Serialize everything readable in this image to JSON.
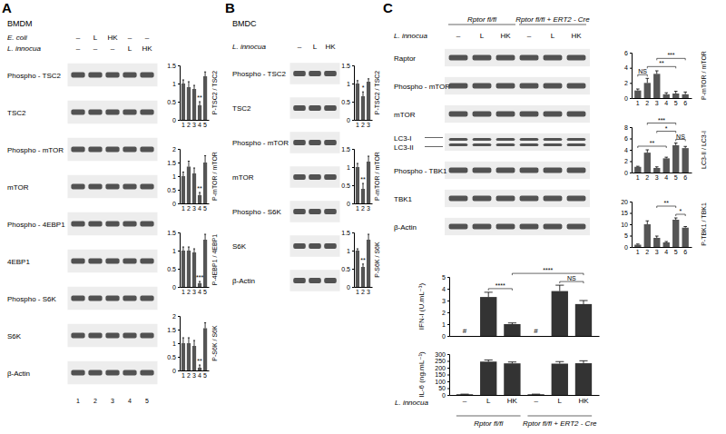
{
  "chart_data": [
    {
      "type": "bar",
      "y_label": "P-TSC2 / TSC2",
      "categories": [
        "1",
        "2",
        "3",
        "4",
        "5"
      ],
      "values": [
        1.0,
        0.9,
        0.85,
        0.4,
        1.2
      ],
      "errors": [
        0.1,
        0.15,
        0.1,
        0.1,
        0.12
      ],
      "ylim": [
        0,
        1.5
      ],
      "yticks": [
        0,
        0.5,
        1,
        1.5
      ],
      "color": "#555555",
      "annotations": [
        {
          "text": "**",
          "from": 3,
          "to": 3
        }
      ]
    },
    {
      "type": "bar",
      "y_label": "P-mTOR / mTOR",
      "categories": [
        "1",
        "2",
        "3",
        "4",
        "5"
      ],
      "values": [
        1.0,
        1.35,
        1.1,
        0.3,
        1.5
      ],
      "errors": [
        0.15,
        0.2,
        0.2,
        0.1,
        0.25
      ],
      "ylim": [
        0,
        2
      ],
      "yticks": [
        0,
        0.5,
        1,
        1.5,
        2
      ],
      "color": "#555555",
      "annotations": [
        {
          "text": "**",
          "from": 3,
          "to": 3
        }
      ]
    },
    {
      "type": "bar",
      "y_label": "P-4EBP1 / 4EBP1",
      "categories": [
        "1",
        "2",
        "3",
        "4",
        "5"
      ],
      "values": [
        1.0,
        1.0,
        0.95,
        0.1,
        1.3
      ],
      "errors": [
        0.1,
        0.1,
        0.1,
        0.05,
        0.15
      ],
      "ylim": [
        0,
        1.5
      ],
      "yticks": [
        0,
        0.5,
        1,
        1.5
      ],
      "color": "#555555",
      "annotations": [
        {
          "text": "***",
          "from": 3,
          "to": 3
        }
      ]
    },
    {
      "type": "bar",
      "y_label": "P-S6K / S6K",
      "categories": [
        "1",
        "2",
        "3",
        "4",
        "5"
      ],
      "values": [
        1.0,
        1.0,
        0.9,
        0.1,
        1.55
      ],
      "errors": [
        0.2,
        0.2,
        0.2,
        0.1,
        0.2
      ],
      "ylim": [
        0,
        2
      ],
      "yticks": [
        0,
        0.5,
        1,
        1.5,
        2
      ],
      "color": "#555555",
      "annotations": [
        {
          "text": "**",
          "from": 3,
          "to": 3
        }
      ]
    },
    {
      "type": "bar",
      "y_label": "P-TSC2 / TSC2",
      "categories": [
        "1",
        "2",
        "3"
      ],
      "values": [
        1.0,
        0.65,
        1.05
      ],
      "errors": [
        0.08,
        0.12,
        0.08
      ],
      "ylim": [
        0,
        1.5
      ],
      "yticks": [
        0,
        0.5,
        1,
        1.5
      ],
      "color": "#555555",
      "annotations": [
        {
          "text": "*",
          "from": 1,
          "to": 1
        }
      ]
    },
    {
      "type": "bar",
      "y_label": "P-mTOR / mTOR",
      "categories": [
        "1",
        "2",
        "3"
      ],
      "values": [
        1.0,
        0.4,
        1.15
      ],
      "errors": [
        0.1,
        0.15,
        0.15
      ],
      "ylim": [
        0,
        1.5
      ],
      "yticks": [
        0,
        0.5,
        1,
        1.5
      ],
      "color": "#555555",
      "annotations": [
        {
          "text": "**",
          "from": 1,
          "to": 1
        }
      ]
    },
    {
      "type": "bar",
      "y_label": "P-S6K / S6K",
      "categories": [
        "1",
        "2",
        "3"
      ],
      "values": [
        1.0,
        0.55,
        1.3
      ],
      "errors": [
        0.05,
        0.08,
        0.15
      ],
      "ylim": [
        0,
        1.5
      ],
      "yticks": [
        0,
        0.5,
        1,
        1.5
      ],
      "color": "#555555",
      "annotations": [
        {
          "text": "**",
          "from": 1,
          "to": 1
        }
      ]
    },
    {
      "type": "bar",
      "y_label": "P-mTOR / mTOR",
      "categories": [
        "1",
        "2",
        "3",
        "4",
        "5",
        "6"
      ],
      "values": [
        1.0,
        2.0,
        3.2,
        0.5,
        0.6,
        0.5
      ],
      "errors": [
        0.2,
        0.6,
        0.4,
        0.2,
        0.3,
        0.3
      ],
      "ylim": [
        0,
        6
      ],
      "yticks": [
        0,
        2,
        4,
        6
      ],
      "color": "#555555",
      "annotations": [
        {
          "text": "NS",
          "from": 0,
          "to": 1
        },
        {
          "text": "**",
          "from": 1,
          "to": 4
        },
        {
          "text": "***",
          "from": 2,
          "to": 5
        }
      ]
    },
    {
      "type": "bar",
      "y_label": "LC3-II / LC3-I",
      "categories": [
        "1",
        "2",
        "3",
        "4",
        "5",
        "6"
      ],
      "values": [
        1.0,
        3.5,
        0.8,
        2.5,
        4.8,
        4.3
      ],
      "errors": [
        0.1,
        0.5,
        0.2,
        0.2,
        0.4,
        0.3
      ],
      "ylim": [
        0,
        8
      ],
      "yticks": [
        0,
        2,
        4,
        6,
        8
      ],
      "color": "#555555",
      "annotations": [
        {
          "text": "NS",
          "from": 4,
          "to": 5
        },
        {
          "text": "**",
          "from": 0,
          "to": 3
        },
        {
          "text": "*",
          "from": 2,
          "to": 4
        },
        {
          "text": "***",
          "from": 1,
          "to": 4
        }
      ]
    },
    {
      "type": "bar",
      "y_label": "P-TBK1 / TBK1",
      "categories": [
        "1",
        "2",
        "3",
        "4",
        "5",
        "6"
      ],
      "values": [
        1.0,
        10.0,
        4.0,
        2.0,
        12.0,
        8.5
      ],
      "errors": [
        0.3,
        1.5,
        0.8,
        0.4,
        0.8,
        0.5
      ],
      "ylim": [
        0,
        20
      ],
      "yticks": [
        0,
        5,
        10,
        15,
        20
      ],
      "color": "#555555",
      "annotations": [
        {
          "text": "*",
          "from": 4,
          "to": 5
        },
        {
          "text": "**",
          "from": 2,
          "to": 4
        }
      ]
    },
    {
      "type": "bar",
      "y_label": "IFN-I (U.mL⁻¹)",
      "categories": [
        "–",
        "L",
        "HK",
        "–",
        "L",
        "HK"
      ],
      "values": [
        null,
        3.3,
        1.0,
        null,
        3.8,
        2.7
      ],
      "value_labels": [
        "#",
        null,
        null,
        "#",
        null,
        null
      ],
      "errors": [
        null,
        0.4,
        0.1,
        null,
        0.5,
        0.3
      ],
      "ylim": [
        0,
        5
      ],
      "yticks": [
        0,
        1,
        2,
        3,
        4,
        5
      ],
      "tick_labels": "y",
      "color": "#333333",
      "annotations": [
        {
          "text": "****",
          "from": 1,
          "to": 2
        },
        {
          "text": "NS",
          "from": 4,
          "to": 5
        },
        {
          "text": "****",
          "from": 2,
          "to": 5
        }
      ]
    },
    {
      "type": "bar",
      "y_label": "IL-6 (ng.mL⁻¹)",
      "x_label": "L. innocua",
      "categories": [
        "–",
        "L",
        "HK",
        "–",
        "L",
        "HK"
      ],
      "values": [
        5,
        245,
        232,
        5,
        230,
        233
      ],
      "errors": [
        1,
        12,
        10,
        1,
        15,
        18
      ],
      "ylim": [
        0,
        300
      ],
      "yticks": [
        0,
        50,
        100,
        150,
        200,
        250,
        300
      ],
      "color": "#333333",
      "annotations": []
    }
  ],
  "figure": {
    "panels": [
      {
        "letter": "A",
        "cell": "BMDM",
        "treatments": [
          {
            "label": "E. coli",
            "lanes": [
              "–",
              "L",
              "HK",
              "–",
              "–"
            ]
          },
          {
            "label": "L. innocua",
            "lanes": [
              "–",
              "–",
              "–",
              "L",
              "HK"
            ]
          }
        ],
        "rows": [
          [
            "Phospho - TSC2"
          ],
          [
            "TSC2"
          ],
          [
            "Phospho - mTOR"
          ],
          [
            "mTOR"
          ],
          [
            "Phospho - 4EBP1"
          ],
          [
            "4EBP1"
          ],
          [
            "Phospho - S6K"
          ],
          [
            "S6K"
          ],
          [
            "β-Actin"
          ]
        ],
        "lane_numbers": [
          "1",
          "2",
          "3",
          "4",
          "5"
        ]
      },
      {
        "letter": "B",
        "cell": "BMDC",
        "treatments": [
          {
            "label": "L. innocua",
            "lanes": [
              "–",
              "L",
              "HK"
            ]
          }
        ],
        "rows": [
          [
            "Phospho - TSC2"
          ],
          [
            "TSC2"
          ],
          [
            "Phospho - mTOR"
          ],
          [
            "mTOR"
          ],
          [
            "Phospho - S6K"
          ],
          [
            "S6K"
          ],
          [
            "β-Actin"
          ]
        ]
      },
      {
        "letter": "C",
        "groups": [
          "Rptor fl/fl",
          "Rptor fl/fl + ERT2 - Cre"
        ],
        "treatments": [
          {
            "label": "L. innocua",
            "lanes": [
              "–",
              "L",
              "HK",
              "–",
              "L",
              "HK"
            ]
          }
        ],
        "rows": [
          [
            "Raptor"
          ],
          [
            "Phospho - mTOR"
          ],
          [
            "mTOR"
          ],
          [
            "LC3-I",
            "LC3-II"
          ],
          [
            "Phospho - TBK1"
          ],
          [
            "TBK1"
          ],
          [
            "β-Actin"
          ]
        ],
        "bottom_groups": [
          "Rptor fl/fl",
          "Rptor fl/fl + ERT2 - Cre"
        ]
      }
    ]
  }
}
